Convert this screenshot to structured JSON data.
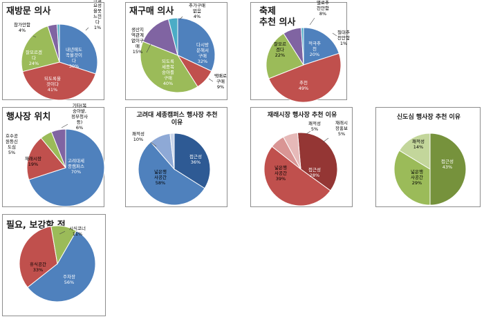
{
  "chart_data": [
    {
      "type": "pie",
      "title": "재방문 의사",
      "slices": [
        {
          "label": "내년에도 꼭 올것이다",
          "pct": "30%",
          "value": 30,
          "color": "#4F81BD"
        },
        {
          "label": "되도록 올것이다",
          "pct": "41%",
          "value": 41,
          "color": "#C0504D"
        },
        {
          "label": "잘 모르겠다",
          "pct": "24%",
          "value": 24,
          "color": "#9BBB59"
        },
        {
          "label": "참가 안함",
          "pct": "4%",
          "value": 4,
          "color": "#8064A2"
        },
        {
          "label": "참가의 필요성을 못느낀다",
          "pct": "1%",
          "value": 1,
          "color": "#4BACC6"
        }
      ]
    },
    {
      "type": "pie",
      "title": "재구매 의사",
      "slices": [
        {
          "label": "다시 방문해서 구매",
          "pct": "32%",
          "value": 32,
          "color": "#4F81BD"
        },
        {
          "label": "택배로 구매",
          "pct": "9%",
          "value": 9,
          "color": "#C0504D"
        },
        {
          "label": "되도록 세종 복숭아를 구매",
          "pct": "40%",
          "value": 40,
          "color": "#9BBB59"
        },
        {
          "label": "생산지 역관계 없이 구매",
          "pct": "15%",
          "value": 15,
          "color": "#8064A2"
        },
        {
          "label": "추가구매없음",
          "pct": "4%",
          "value": 4,
          "color": "#4BACC6"
        }
      ]
    },
    {
      "type": "pie",
      "title": "축제\n추천 의사",
      "slices": [
        {
          "label": "적극추천",
          "pct": "20%",
          "value": 20,
          "color": "#4F81BD"
        },
        {
          "label": "추천",
          "pct": "49%",
          "value": 49,
          "color": "#C0504D"
        },
        {
          "label": "잘 모르겠다",
          "pct": "22%",
          "value": 22,
          "color": "#9BBB59"
        },
        {
          "label": "별로 추천 안함",
          "pct": "8%",
          "value": 8,
          "color": "#8064A2"
        },
        {
          "label": "절대추천안함",
          "pct": "1%",
          "value": 1,
          "color": "#4BACC6"
        }
      ]
    },
    {
      "type": "pie",
      "title": "행사장 위치",
      "slices": [
        {
          "label": "고려대 세종 캠퍼스",
          "pct": "70%",
          "value": 70,
          "color": "#4F81BD"
        },
        {
          "label": "재래시장",
          "pct": "19%",
          "value": 19,
          "color": "#C0504D"
        },
        {
          "label": "호수공원 등 신도심",
          "pct": "5%",
          "value": 5,
          "color": "#9BBB59"
        },
        {
          "label": "기타 (복숭아밭, 정부청사 등)",
          "pct": "6%",
          "value": 6,
          "color": "#8064A2"
        }
      ]
    },
    {
      "type": "pie",
      "title": "고려대 세종캠퍼스 행사장 추천\n이유",
      "slices": [
        {
          "label": "접근성",
          "pct": "36%",
          "value": 36,
          "color": "#2E5A94"
        },
        {
          "label": "넓은 행사 공간",
          "pct": "58%",
          "value": 58,
          "color": "#4F81BD"
        },
        {
          "label": "쾌적성",
          "pct": "10%",
          "value": 10,
          "color": "#8EA9D6"
        },
        {
          "label": "",
          "pct": "",
          "value": 2,
          "color": "#C9D5EA"
        }
      ]
    },
    {
      "type": "pie",
      "title": "재래시장 행사장 추천 이유",
      "slices": [
        {
          "label": "접근성",
          "pct": "28%",
          "value": 28,
          "color": "#943634"
        },
        {
          "label": "넓은 행사 공간",
          "pct": "39%",
          "value": 39,
          "color": "#C0504D"
        },
        {
          "label": "쾌적성",
          "pct": "5%",
          "value": 5,
          "color": "#D99594"
        },
        {
          "label": "재래시장 홍보",
          "pct": "5%",
          "value": 5,
          "color": "#E6B9B8"
        }
      ]
    },
    {
      "type": "pie",
      "title": "신도심 행사장 추천 이유",
      "slices": [
        {
          "label": "접근성",
          "pct": "43%",
          "value": 43,
          "color": "#76923C"
        },
        {
          "label": "넓은 행사 공간",
          "pct": "29%",
          "value": 29,
          "color": "#9BBB59"
        },
        {
          "label": "쾌적성",
          "pct": "14%",
          "value": 14,
          "color": "#C3D69B"
        }
      ]
    },
    {
      "type": "pie",
      "title": "필요, 보강할 점",
      "slices": [
        {
          "label": "주차장",
          "pct": "56%",
          "value": 56,
          "color": "#4F81BD"
        },
        {
          "label": "휴식공간",
          "pct": "33%",
          "value": 33,
          "color": "#C0504D"
        },
        {
          "label": "시식코너",
          "pct": "11%",
          "value": 11,
          "color": "#9BBB59"
        }
      ]
    }
  ]
}
